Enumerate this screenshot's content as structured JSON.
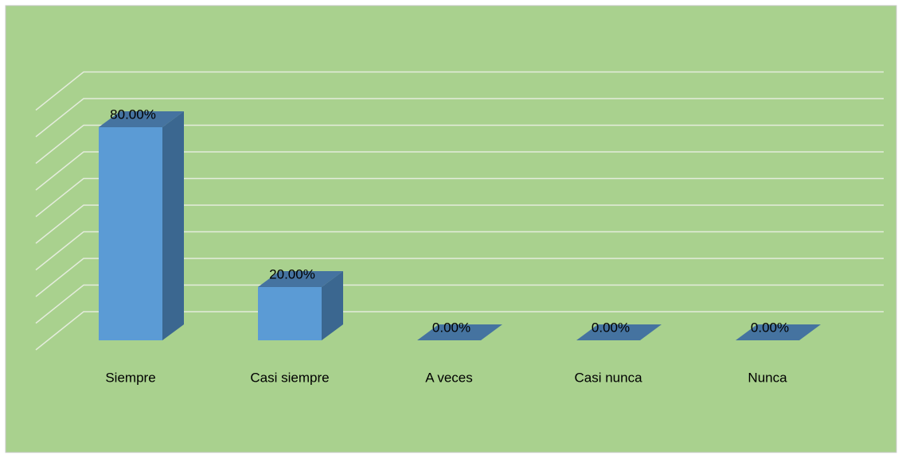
{
  "chart_data": {
    "type": "bar3d",
    "categories": [
      "Siempre",
      "Casi siempre",
      "A veces",
      "Casi nunca",
      "Nunca"
    ],
    "values": [
      80,
      20,
      0,
      0,
      0
    ],
    "value_labels": [
      "80.00%",
      "20.00%",
      "0.00%",
      "0.00%",
      "0.00%"
    ],
    "color": "#5b9bd5",
    "ylim": [
      0,
      90
    ],
    "yticks": [
      0,
      10,
      20,
      30,
      40,
      50,
      60,
      70,
      80,
      90
    ],
    "grid": true
  }
}
